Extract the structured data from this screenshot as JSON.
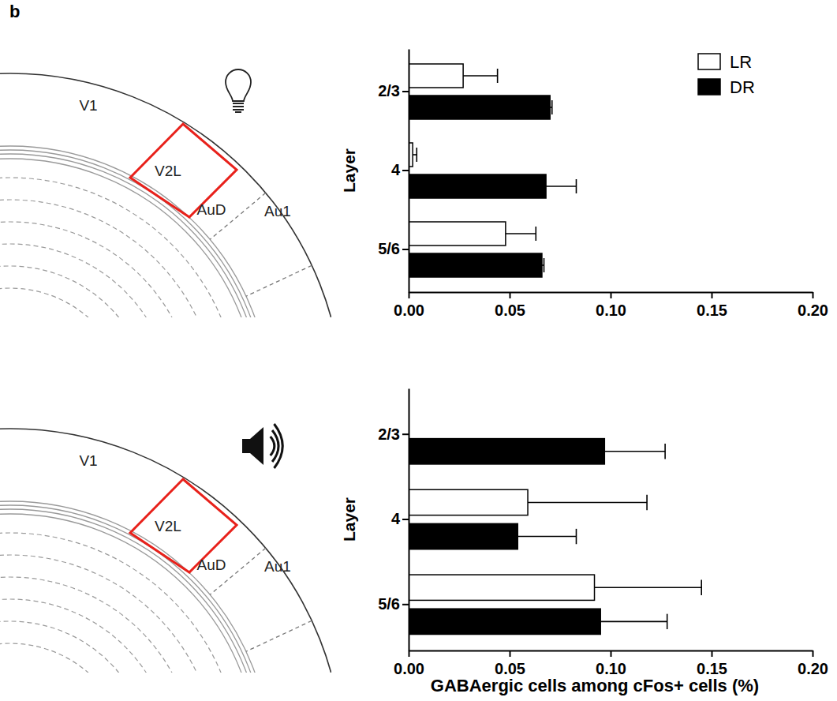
{
  "panel_label": "b",
  "diagrams": [
    {
      "labels": [
        "V1",
        "V2L",
        "AuD",
        "Au1"
      ]
    },
    {
      "labels": [
        "V1",
        "V2L",
        "AuD",
        "Au1"
      ]
    }
  ],
  "chart_data": [
    {
      "type": "bar",
      "orientation": "horizontal",
      "y_label": "Layer",
      "categories": [
        "2/3",
        "4",
        "5/6"
      ],
      "series": [
        {
          "name": "LR",
          "color": "#ffffff",
          "values": [
            0.027,
            0.002,
            0.048
          ],
          "errors": [
            0.017,
            0.002,
            0.015
          ]
        },
        {
          "name": "DR",
          "color": "#000000",
          "values": [
            0.07,
            0.068,
            0.066
          ],
          "errors": [
            0.001,
            0.015,
            0.001
          ]
        }
      ],
      "xlim": [
        0,
        0.2
      ],
      "xticks": [
        {
          "value": 0,
          "label": "0.00"
        },
        {
          "value": 0.05,
          "label": "0.05"
        },
        {
          "value": 0.1,
          "label": "0.10"
        },
        {
          "value": 0.15,
          "label": "0.15"
        },
        {
          "value": 0.2,
          "label": "0.20"
        }
      ],
      "legend": "upper right"
    },
    {
      "type": "bar",
      "orientation": "horizontal",
      "y_label": "Layer",
      "x_label": "GABAergic cells among cFos+ cells (%)",
      "categories": [
        "2/3",
        "4",
        "5/6"
      ],
      "series": [
        {
          "name": "LR",
          "color": "#ffffff",
          "values": [
            null,
            0.059,
            0.092
          ],
          "errors": [
            null,
            0.059,
            0.053
          ]
        },
        {
          "name": "DR",
          "color": "#000000",
          "values": [
            0.097,
            0.054,
            0.095
          ],
          "errors": [
            0.03,
            0.029,
            0.033
          ]
        }
      ],
      "xlim": [
        0,
        0.2
      ],
      "xticks": [
        {
          "value": 0,
          "label": "0.00"
        },
        {
          "value": 0.05,
          "label": "0.05"
        },
        {
          "value": 0.1,
          "label": "0.10"
        },
        {
          "value": 0.15,
          "label": "0.15"
        },
        {
          "value": 0.2,
          "label": "0.20"
        }
      ]
    }
  ]
}
